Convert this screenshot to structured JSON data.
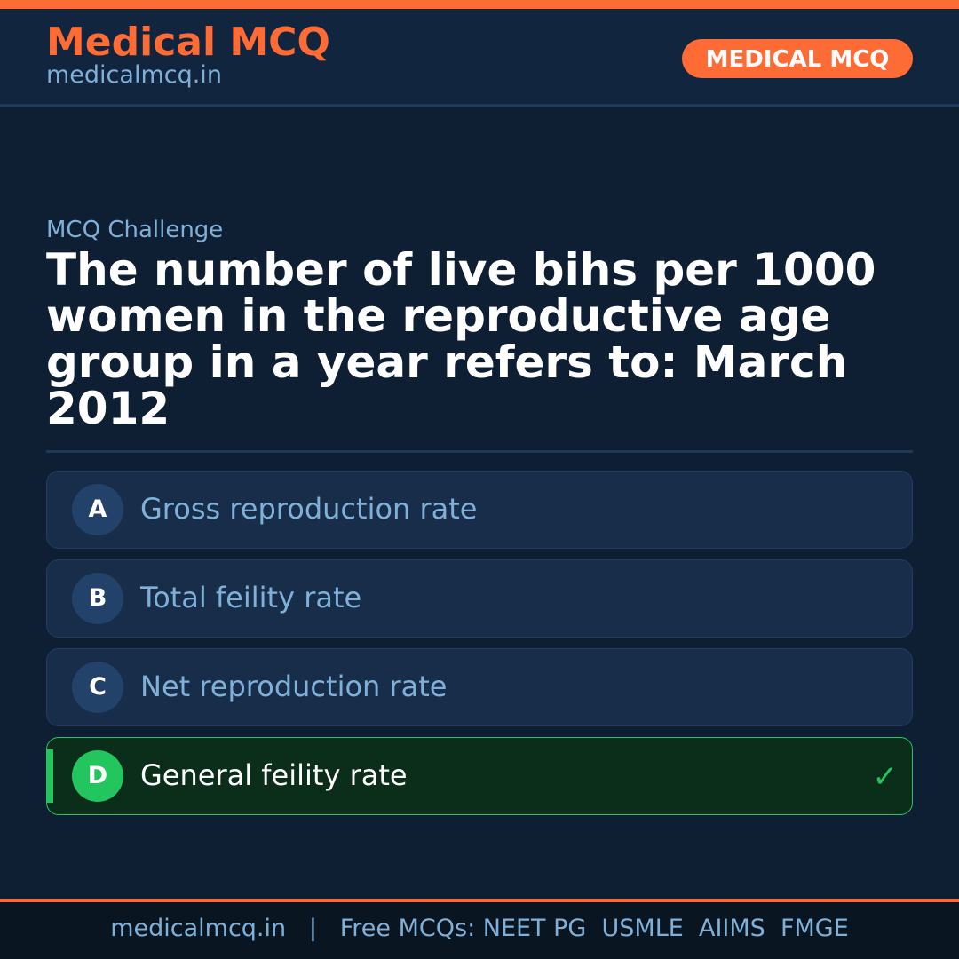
{
  "header": {
    "brand": "Medical MCQ",
    "url": "medicalmcq.in",
    "badge": "MEDICAL MCQ"
  },
  "colors": {
    "accent": "#ff6b35",
    "correct": "#22c55e",
    "background": "#0e1e33"
  },
  "main": {
    "label": "MCQ Challenge",
    "question": "The number of live bihs per 1000 women in the reproductive age group in a year refers to: March 2012",
    "options": [
      {
        "letter": "A",
        "text": "Gross reproduction rate",
        "correct": false
      },
      {
        "letter": "B",
        "text": "Total feility rate",
        "correct": false
      },
      {
        "letter": "C",
        "text": "Net reproduction rate",
        "correct": false
      },
      {
        "letter": "D",
        "text": "General feility rate",
        "correct": true,
        "icon": "check-icon",
        "mark": "✓"
      }
    ]
  },
  "footer": {
    "text": "medicalmcq.in   |   Free MCQs: NEET PG  USMLE  AIIMS  FMGE"
  }
}
